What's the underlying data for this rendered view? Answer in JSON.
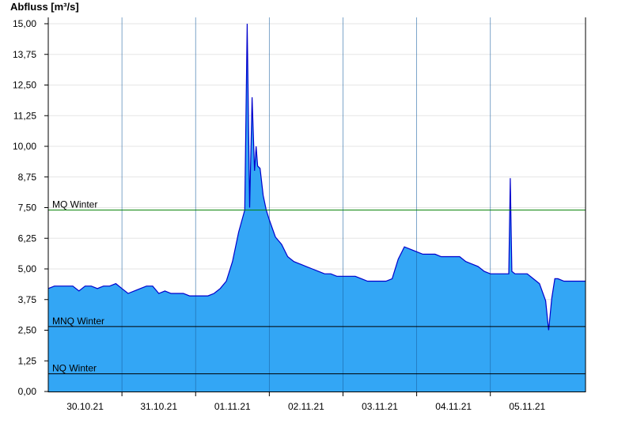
{
  "chart_data": {
    "type": "area",
    "ylabel": "Abfluss [m³/s]",
    "xlabel": "",
    "title": "",
    "ylim": [
      0,
      15
    ],
    "x_start": "29.10.21 12:00",
    "x_end": "05.11.21 19:00",
    "yticks": [
      "0,00",
      "1,25",
      "2,50",
      "3,75",
      "5,00",
      "6,25",
      "7,50",
      "8,75",
      "10,00",
      "11,25",
      "12,50",
      "13,75",
      "15,00"
    ],
    "xticks": [
      "30.10.21",
      "31.10.21",
      "01.11.21",
      "02.11.21",
      "03.11.21",
      "04.11.21",
      "05.11.21"
    ],
    "grid": true,
    "reference_lines": [
      {
        "name": "MQ Winter",
        "value": 7.4,
        "color": "#008000"
      },
      {
        "name": "MNQ Winter",
        "value": 2.65,
        "color": "#000000"
      },
      {
        "name": "NQ Winter",
        "value": 0.72,
        "color": "#000000"
      }
    ],
    "fill_color": "#33a6f5",
    "line_color": "#0000cc",
    "series": [
      {
        "x_hours": [
          0,
          2,
          4,
          6,
          8,
          10,
          12,
          14,
          16,
          18,
          20,
          22,
          24,
          26,
          28,
          30,
          32,
          34,
          36,
          38,
          40,
          42,
          44,
          46,
          48,
          50,
          52,
          54,
          56,
          58,
          60,
          62,
          64,
          64.8,
          65.6,
          66.4,
          67.2,
          67.7,
          68.2,
          69,
          70,
          71,
          72,
          74,
          76,
          78,
          80,
          82,
          84,
          86,
          88,
          90,
          92,
          94,
          96,
          98,
          100,
          102,
          104,
          106,
          108,
          110,
          112,
          114,
          116,
          118,
          120,
          122,
          124,
          126,
          128,
          130,
          132,
          134,
          136,
          138,
          140,
          142,
          144,
          146,
          148,
          150,
          150.5,
          151,
          152,
          154,
          156,
          158,
          160,
          162,
          163,
          164,
          165,
          166,
          168,
          170,
          172,
          174,
          176
        ],
        "values": [
          4.2,
          4.3,
          4.3,
          4.3,
          4.3,
          4.1,
          4.3,
          4.3,
          4.2,
          4.3,
          4.3,
          4.4,
          4.2,
          4.0,
          4.1,
          4.2,
          4.3,
          4.3,
          4.0,
          4.1,
          4.0,
          4.0,
          4.0,
          3.9,
          3.9,
          3.9,
          3.9,
          4.0,
          4.2,
          4.5,
          5.3,
          6.5,
          7.4,
          15.0,
          7.5,
          12.0,
          9.0,
          10.0,
          9.2,
          9.1,
          8.0,
          7.4,
          7.0,
          6.3,
          6.0,
          5.5,
          5.3,
          5.2,
          5.1,
          5.0,
          4.9,
          4.8,
          4.8,
          4.7,
          4.7,
          4.7,
          4.7,
          4.6,
          4.5,
          4.5,
          4.5,
          4.5,
          4.6,
          5.4,
          5.9,
          5.8,
          5.7,
          5.6,
          5.6,
          5.6,
          5.5,
          5.5,
          5.5,
          5.5,
          5.3,
          5.2,
          5.1,
          4.9,
          4.8,
          4.8,
          4.8,
          4.8,
          8.7,
          4.9,
          4.8,
          4.8,
          4.8,
          4.6,
          4.4,
          3.7,
          2.5,
          3.8,
          4.6,
          4.6,
          4.5,
          4.5,
          4.5,
          4.5,
          4.5
        ]
      }
    ]
  }
}
